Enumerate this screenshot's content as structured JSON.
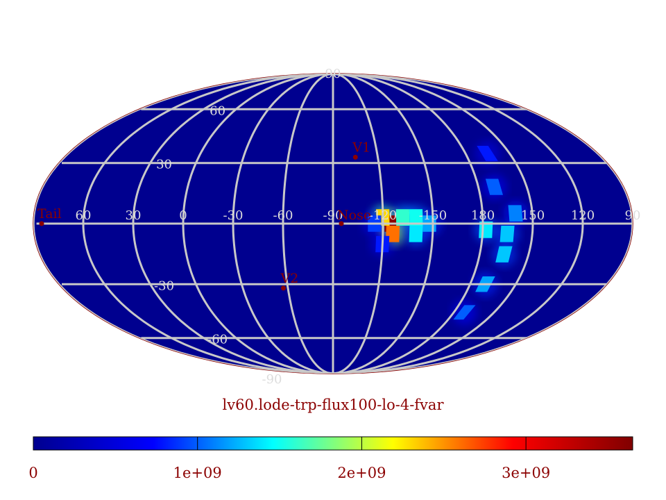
{
  "title": "lv60.lode-trp-flux100-lo-4-fvar",
  "colors": {
    "background": "#ffffff",
    "map_base": "#00008f",
    "map_border": "#8b0000",
    "grid": "#c8c8c8",
    "marker": "#8b0000",
    "text": "#8b0000"
  },
  "projection": "mollweide",
  "longitude_labels": [
    {
      "lon": 60,
      "text": "60"
    },
    {
      "lon": 30,
      "text": "30"
    },
    {
      "lon": 0,
      "text": "0"
    },
    {
      "lon": -30,
      "text": "-30"
    },
    {
      "lon": -60,
      "text": "-60"
    },
    {
      "lon": -90,
      "text": "-90"
    },
    {
      "lon": -120,
      "text": "-120"
    },
    {
      "lon": -150,
      "text": "-150"
    },
    {
      "lon": 180,
      "text": "180"
    },
    {
      "lon": 150,
      "text": "150"
    },
    {
      "lon": 120,
      "text": "120"
    },
    {
      "lon": 90,
      "text": "90"
    }
  ],
  "latitude_labels": [
    {
      "lat": 90,
      "text": "90"
    },
    {
      "lat": 60,
      "text": "60"
    },
    {
      "lat": 30,
      "text": "30"
    },
    {
      "lat": -30,
      "text": "-30"
    },
    {
      "lat": -60,
      "text": "-60"
    },
    {
      "lat": -90,
      "text": "-90"
    }
  ],
  "markers": [
    {
      "name": "V1",
      "label": "V1",
      "lon": -105,
      "lat": 33
    },
    {
      "name": "Nose",
      "label": "Nose",
      "lon": -95,
      "lat": 0
    },
    {
      "name": "V2",
      "label": "V2",
      "lon": -57,
      "lat": -32
    },
    {
      "name": "Tail",
      "label": "Tail",
      "lon": 85,
      "lat": 0
    }
  ],
  "colorbar": {
    "min": 0,
    "max": 3650000000.0,
    "ticks": [
      {
        "value": 0,
        "label": "0"
      },
      {
        "value": 1000000000.0,
        "label": "1e+09"
      },
      {
        "value": 2000000000.0,
        "label": "2e+09"
      },
      {
        "value": 3000000000.0,
        "label": "3e+09"
      }
    ],
    "stops": [
      "#00008f",
      "#0000ff",
      "#00ffff",
      "#ffff00",
      "#ff0000",
      "#800000"
    ]
  },
  "hotspots": [
    {
      "lon": -125,
      "lat": 0,
      "value": 3600000000.0
    },
    {
      "lon": -126,
      "lat": -5,
      "value": 2600000000.0
    },
    {
      "lon": -120,
      "lat": 3,
      "value": 2300000000.0
    },
    {
      "lon": -132,
      "lat": 3,
      "value": 1600000000.0
    },
    {
      "lon": -140,
      "lat": 3,
      "value": 1500000000.0
    },
    {
      "lon": -140,
      "lat": -5,
      "value": 1400000000.0
    },
    {
      "lon": -148,
      "lat": 0,
      "value": 1200000000.0
    },
    {
      "lon": -115,
      "lat": 0,
      "value": 900000000.0
    },
    {
      "lon": -120,
      "lat": -10,
      "value": 800000000.0
    },
    {
      "lon": 178,
      "lat": -3,
      "value": 1400000000.0
    },
    {
      "lon": 165,
      "lat": -5,
      "value": 1300000000.0
    },
    {
      "lon": 165,
      "lat": -15,
      "value": 1300000000.0
    },
    {
      "lon": 170,
      "lat": -30,
      "value": 1200000000.0
    },
    {
      "lon": 172,
      "lat": -45,
      "value": 1000000000.0
    },
    {
      "lon": 170,
      "lat": 18,
      "value": 1000000000.0
    },
    {
      "lon": 165,
      "lat": 35,
      "value": 800000000.0
    },
    {
      "lon": 160,
      "lat": 5,
      "value": 1100000000.0
    }
  ]
}
